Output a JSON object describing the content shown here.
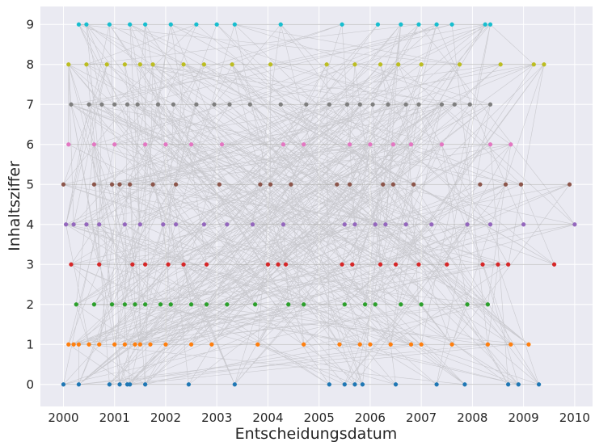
{
  "chart_data": {
    "type": "scatter",
    "title": "",
    "xlabel": "Entscheidungsdatum",
    "ylabel": "Inhaltsziffer",
    "xlim": [
      1999.55,
      2010.35
    ],
    "ylim": [
      -0.55,
      9.45
    ],
    "x_ticks": [
      2000,
      2001,
      2002,
      2003,
      2004,
      2005,
      2006,
      2007,
      2008,
      2009,
      2010
    ],
    "y_ticks": [
      0,
      1,
      2,
      3,
      4,
      5,
      6,
      7,
      8,
      9
    ],
    "grid": true,
    "legend": "none",
    "colors": {
      "background": "#eaeaf2",
      "grid": "#ffffff",
      "connector": "#8c8c8c",
      "series": [
        "#1f77b4",
        "#ff7f0e",
        "#2ca02c",
        "#d62728",
        "#9467bd",
        "#8c564b",
        "#e377c2",
        "#7f7f7f",
        "#bcbd22",
        "#17becf"
      ]
    },
    "series": [
      {
        "values": [
          2000.0,
          2000.3,
          2000.9,
          2001.1,
          2001.25,
          2001.3,
          2001.6,
          2002.45,
          2003.35,
          2005.2,
          2005.5,
          2005.7,
          2005.85,
          2006.5,
          2007.3,
          2007.85,
          2008.7,
          2008.9,
          2009.3
        ]
      },
      {
        "values": [
          2000.1,
          2000.2,
          2000.3,
          2000.5,
          2000.7,
          2001.0,
          2001.2,
          2001.4,
          2001.5,
          2001.7,
          2002.0,
          2002.5,
          2002.9,
          2003.8,
          2004.7,
          2005.4,
          2005.8,
          2006.0,
          2006.4,
          2006.8,
          2007.0,
          2007.6,
          2008.3,
          2008.75,
          2009.1
        ]
      },
      {
        "values": [
          2000.25,
          2000.6,
          2000.95,
          2001.2,
          2001.4,
          2001.6,
          2001.9,
          2002.1,
          2002.5,
          2002.8,
          2003.2,
          2003.75,
          2004.4,
          2004.7,
          2005.5,
          2005.9,
          2006.1,
          2006.6,
          2007.0,
          2007.9,
          2008.3
        ]
      },
      {
        "values": [
          2000.15,
          2000.7,
          2001.35,
          2001.6,
          2002.05,
          2002.35,
          2002.8,
          2004.0,
          2004.2,
          2004.35,
          2005.45,
          2005.65,
          2006.2,
          2006.5,
          2006.95,
          2007.5,
          2008.2,
          2008.5,
          2008.7,
          2009.6
        ]
      },
      {
        "values": [
          2000.05,
          2000.2,
          2000.45,
          2000.7,
          2001.2,
          2001.5,
          2001.95,
          2002.2,
          2002.75,
          2003.2,
          2003.7,
          2004.3,
          2005.5,
          2005.7,
          2006.1,
          2006.3,
          2006.7,
          2007.2,
          2007.9,
          2008.35,
          2009.0,
          2010.0
        ]
      },
      {
        "values": [
          2000.0,
          2000.6,
          2000.95,
          2001.1,
          2001.3,
          2001.75,
          2002.2,
          2003.05,
          2003.85,
          2004.05,
          2004.45,
          2005.35,
          2005.6,
          2006.25,
          2006.45,
          2006.85,
          2008.15,
          2008.65,
          2008.95,
          2009.9
        ]
      },
      {
        "values": [
          2000.1,
          2000.6,
          2001.0,
          2001.6,
          2002.0,
          2002.5,
          2003.1,
          2004.3,
          2004.7,
          2005.6,
          2006.0,
          2006.45,
          2006.8,
          2007.4,
          2008.35,
          2008.75
        ]
      },
      {
        "values": [
          2000.15,
          2000.5,
          2000.75,
          2001.0,
          2001.25,
          2001.45,
          2001.85,
          2002.15,
          2002.6,
          2002.95,
          2003.25,
          2003.65,
          2004.25,
          2004.75,
          2005.2,
          2005.55,
          2005.8,
          2006.05,
          2006.35,
          2006.7,
          2006.95,
          2007.4,
          2007.65,
          2007.95,
          2008.35
        ]
      },
      {
        "values": [
          2000.1,
          2000.45,
          2000.85,
          2001.2,
          2001.5,
          2001.75,
          2002.35,
          2002.75,
          2003.3,
          2004.05,
          2005.15,
          2005.7,
          2006.2,
          2006.55,
          2007.0,
          2007.75,
          2008.55,
          2009.2,
          2009.4
        ]
      },
      {
        "values": [
          2000.3,
          2000.45,
          2000.9,
          2001.3,
          2001.6,
          2002.1,
          2002.6,
          2003.0,
          2003.35,
          2004.25,
          2005.45,
          2006.15,
          2006.6,
          2006.95,
          2007.3,
          2007.6,
          2008.25,
          2008.35
        ]
      }
    ]
  }
}
